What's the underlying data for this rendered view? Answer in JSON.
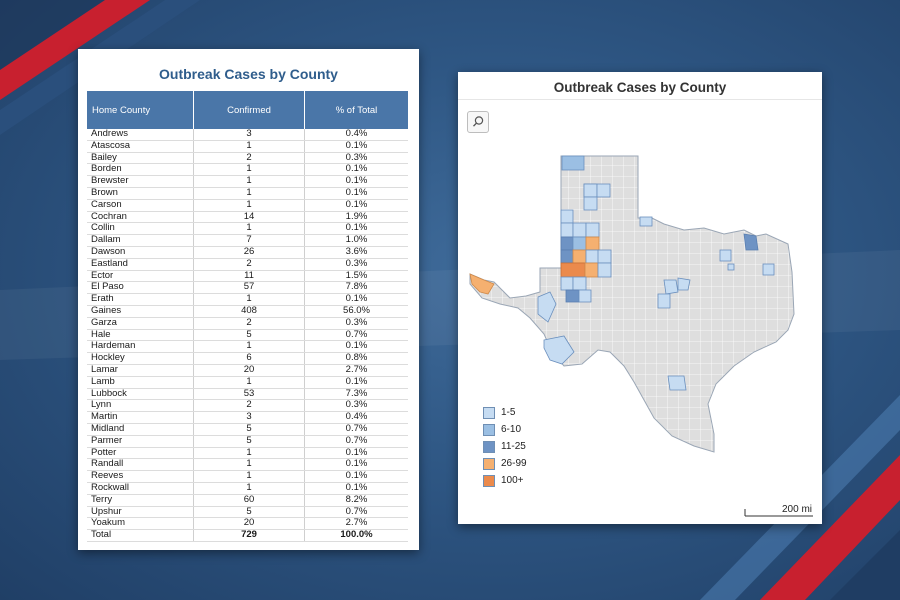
{
  "table_panel": {
    "title": "Outbreak Cases by County",
    "headers": [
      "Home County",
      "Confirmed",
      "% of Total"
    ],
    "rows": [
      {
        "county": "Andrews",
        "confirmed": "3",
        "pct": "0.4%"
      },
      {
        "county": "Atascosa",
        "confirmed": "1",
        "pct": "0.1%"
      },
      {
        "county": "Bailey",
        "confirmed": "2",
        "pct": "0.3%"
      },
      {
        "county": "Borden",
        "confirmed": "1",
        "pct": "0.1%"
      },
      {
        "county": "Brewster",
        "confirmed": "1",
        "pct": "0.1%"
      },
      {
        "county": "Brown",
        "confirmed": "1",
        "pct": "0.1%"
      },
      {
        "county": "Carson",
        "confirmed": "1",
        "pct": "0.1%"
      },
      {
        "county": "Cochran",
        "confirmed": "14",
        "pct": "1.9%"
      },
      {
        "county": "Collin",
        "confirmed": "1",
        "pct": "0.1%"
      },
      {
        "county": "Dallam",
        "confirmed": "7",
        "pct": "1.0%"
      },
      {
        "county": "Dawson",
        "confirmed": "26",
        "pct": "3.6%"
      },
      {
        "county": "Eastland",
        "confirmed": "2",
        "pct": "0.3%"
      },
      {
        "county": "Ector",
        "confirmed": "11",
        "pct": "1.5%"
      },
      {
        "county": "El Paso",
        "confirmed": "57",
        "pct": "7.8%"
      },
      {
        "county": "Erath",
        "confirmed": "1",
        "pct": "0.1%"
      },
      {
        "county": "Gaines",
        "confirmed": "408",
        "pct": "56.0%"
      },
      {
        "county": "Garza",
        "confirmed": "2",
        "pct": "0.3%"
      },
      {
        "county": "Hale",
        "confirmed": "5",
        "pct": "0.7%"
      },
      {
        "county": "Hardeman",
        "confirmed": "1",
        "pct": "0.1%"
      },
      {
        "county": "Hockley",
        "confirmed": "6",
        "pct": "0.8%"
      },
      {
        "county": "Lamar",
        "confirmed": "20",
        "pct": "2.7%"
      },
      {
        "county": "Lamb",
        "confirmed": "1",
        "pct": "0.1%"
      },
      {
        "county": "Lubbock",
        "confirmed": "53",
        "pct": "7.3%"
      },
      {
        "county": "Lynn",
        "confirmed": "2",
        "pct": "0.3%"
      },
      {
        "county": "Martin",
        "confirmed": "3",
        "pct": "0.4%"
      },
      {
        "county": "Midland",
        "confirmed": "5",
        "pct": "0.7%"
      },
      {
        "county": "Parmer",
        "confirmed": "5",
        "pct": "0.7%"
      },
      {
        "county": "Potter",
        "confirmed": "1",
        "pct": "0.1%"
      },
      {
        "county": "Randall",
        "confirmed": "1",
        "pct": "0.1%"
      },
      {
        "county": "Reeves",
        "confirmed": "1",
        "pct": "0.1%"
      },
      {
        "county": "Rockwall",
        "confirmed": "1",
        "pct": "0.1%"
      },
      {
        "county": "Terry",
        "confirmed": "60",
        "pct": "8.2%"
      },
      {
        "county": "Upshur",
        "confirmed": "5",
        "pct": "0.7%"
      },
      {
        "county": "Yoakum",
        "confirmed": "20",
        "pct": "2.7%"
      }
    ],
    "total": {
      "label": "Total",
      "confirmed": "729",
      "pct": "100.0%"
    }
  },
  "map_panel": {
    "title": "Outbreak Cases by County",
    "zoom_icon": "search-icon",
    "legend": [
      {
        "label": "1-5",
        "color": "#c6dcf2"
      },
      {
        "label": "6-10",
        "color": "#9bbfe3"
      },
      {
        "label": "11-25",
        "color": "#6e93c4"
      },
      {
        "label": "26-99",
        "color": "#f5b070"
      },
      {
        "label": "100+",
        "color": "#eb8a4c"
      }
    ],
    "scale_label": "200 mi",
    "base_fill": "#dedede"
  },
  "colors": {
    "header_blue": "#4a76a8",
    "title_blue": "#2f5d8c",
    "accent_red": "#c8202f"
  }
}
